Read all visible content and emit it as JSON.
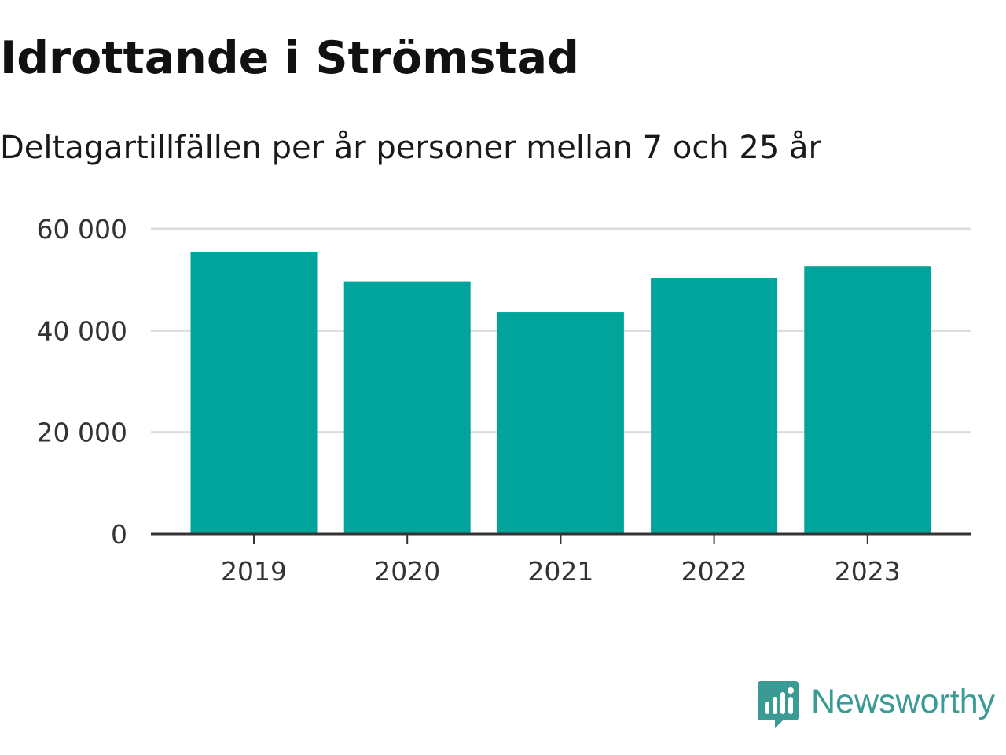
{
  "header": {
    "title": "Idrottande i Strömstad",
    "subtitle": "Deltagartillfällen per år personer mellan 7 och 25 år"
  },
  "brand": {
    "name": "Newsworthy",
    "icon": "newsworthy-logo-icon",
    "color": "#3a9a94"
  },
  "colors": {
    "bar": "#00a49a",
    "grid": "#dddddd",
    "axis": "#333333"
  },
  "chart_data": {
    "type": "bar",
    "title": "Idrottande i Strömstad",
    "subtitle": "Deltagartillfällen per år personer mellan 7 och 25 år",
    "xlabel": "",
    "ylabel": "",
    "categories": [
      "2019",
      "2020",
      "2021",
      "2022",
      "2023"
    ],
    "values": [
      55500,
      49700,
      43600,
      50300,
      52700
    ],
    "ylim": [
      0,
      60000
    ],
    "yticks": [
      0,
      20000,
      40000,
      60000
    ],
    "ytick_labels": [
      "0",
      "20 000",
      "40 000",
      "60 000"
    ],
    "grid": true,
    "legend": "none"
  }
}
